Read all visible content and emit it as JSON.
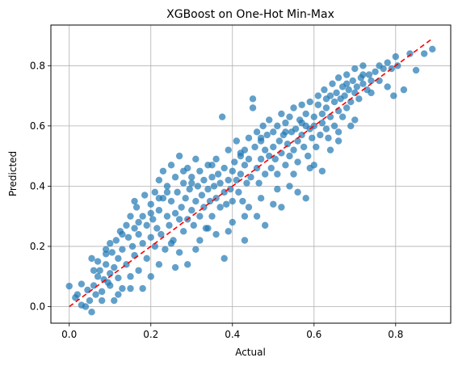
{
  "chart_data": {
    "type": "scatter",
    "title": "XGBoost on One-Hot Min-Max",
    "xlabel": "Actual",
    "ylabel": "Predicted",
    "xlim": [
      -0.045,
      0.935
    ],
    "ylim": [
      -0.055,
      0.935
    ],
    "xticks": [
      0.0,
      0.2,
      0.4,
      0.6,
      0.8
    ],
    "yticks": [
      0.0,
      0.2,
      0.4,
      0.6,
      0.8
    ],
    "xtick_labels": [
      "0.0",
      "0.2",
      "0.4",
      "0.6",
      "0.8"
    ],
    "ytick_labels": [
      "0.0",
      "0.2",
      "0.4",
      "0.6",
      "0.8"
    ],
    "grid": true,
    "point_color": "#1f77b4",
    "reference_line": {
      "style": "dashed",
      "color": "#ff0000",
      "from": [
        0.0,
        0.0
      ],
      "to": [
        0.89,
        0.89
      ]
    },
    "points": [
      [
        0.0,
        0.068
      ],
      [
        0.015,
        0.03
      ],
      [
        0.02,
        0.04
      ],
      [
        0.03,
        0.075
      ],
      [
        0.03,
        0.005
      ],
      [
        0.04,
        0.0
      ],
      [
        0.045,
        0.055
      ],
      [
        0.05,
        0.02
      ],
      [
        0.055,
        0.16
      ],
      [
        0.055,
        -0.018
      ],
      [
        0.06,
        0.07
      ],
      [
        0.065,
        0.04
      ],
      [
        0.07,
        0.1
      ],
      [
        0.075,
        0.12
      ],
      [
        0.08,
        0.05
      ],
      [
        0.085,
        0.09
      ],
      [
        0.09,
        0.14
      ],
      [
        0.09,
        0.175
      ],
      [
        0.095,
        0.08
      ],
      [
        0.1,
        0.11
      ],
      [
        0.1,
        0.21
      ],
      [
        0.105,
        0.18
      ],
      [
        0.11,
        0.13
      ],
      [
        0.11,
        0.02
      ],
      [
        0.115,
        0.22
      ],
      [
        0.12,
        0.16
      ],
      [
        0.12,
        0.095
      ],
      [
        0.125,
        0.25
      ],
      [
        0.13,
        0.19
      ],
      [
        0.13,
        0.06
      ],
      [
        0.14,
        0.27
      ],
      [
        0.14,
        0.14
      ],
      [
        0.145,
        0.23
      ],
      [
        0.15,
        0.3
      ],
      [
        0.15,
        0.1
      ],
      [
        0.155,
        0.2
      ],
      [
        0.16,
        0.26
      ],
      [
        0.16,
        0.17
      ],
      [
        0.165,
        0.33
      ],
      [
        0.17,
        0.24
      ],
      [
        0.17,
        0.12
      ],
      [
        0.18,
        0.3
      ],
      [
        0.18,
        0.21
      ],
      [
        0.185,
        0.37
      ],
      [
        0.19,
        0.27
      ],
      [
        0.19,
        0.16
      ],
      [
        0.2,
        0.34
      ],
      [
        0.2,
        0.23
      ],
      [
        0.205,
        0.29
      ],
      [
        0.21,
        0.38
      ],
      [
        0.21,
        0.2
      ],
      [
        0.215,
        0.26
      ],
      [
        0.22,
        0.42
      ],
      [
        0.22,
        0.32
      ],
      [
        0.225,
        0.24
      ],
      [
        0.23,
        0.45
      ],
      [
        0.23,
        0.36
      ],
      [
        0.235,
        0.19
      ],
      [
        0.24,
        0.3
      ],
      [
        0.24,
        0.4
      ],
      [
        0.245,
        0.27
      ],
      [
        0.25,
        0.47
      ],
      [
        0.25,
        0.35
      ],
      [
        0.255,
        0.22
      ],
      [
        0.26,
        0.31
      ],
      [
        0.26,
        0.43
      ],
      [
        0.265,
        0.38
      ],
      [
        0.27,
        0.29
      ],
      [
        0.27,
        0.5
      ],
      [
        0.275,
        0.33
      ],
      [
        0.28,
        0.41
      ],
      [
        0.28,
        0.25
      ],
      [
        0.285,
        0.36
      ],
      [
        0.29,
        0.46
      ],
      [
        0.29,
        0.29
      ],
      [
        0.295,
        0.39
      ],
      [
        0.3,
        0.32
      ],
      [
        0.3,
        0.43
      ],
      [
        0.305,
        0.27
      ],
      [
        0.31,
        0.35
      ],
      [
        0.31,
        0.49
      ],
      [
        0.315,
        0.4
      ],
      [
        0.32,
        0.3
      ],
      [
        0.32,
        0.45
      ],
      [
        0.325,
        0.37
      ],
      [
        0.33,
        0.42
      ],
      [
        0.33,
        0.33
      ],
      [
        0.335,
        0.26
      ],
      [
        0.34,
        0.39
      ],
      [
        0.34,
        0.47
      ],
      [
        0.345,
        0.35
      ],
      [
        0.35,
        0.43
      ],
      [
        0.35,
        0.3
      ],
      [
        0.355,
        0.4
      ],
      [
        0.36,
        0.36
      ],
      [
        0.36,
        0.49
      ],
      [
        0.365,
        0.44
      ],
      [
        0.37,
        0.33
      ],
      [
        0.37,
        0.41
      ],
      [
        0.375,
        0.63
      ],
      [
        0.38,
        0.38
      ],
      [
        0.38,
        0.46
      ],
      [
        0.385,
        0.34
      ],
      [
        0.39,
        0.42
      ],
      [
        0.39,
        0.52
      ],
      [
        0.395,
        0.39
      ],
      [
        0.4,
        0.45
      ],
      [
        0.4,
        0.35
      ],
      [
        0.405,
        0.48
      ],
      [
        0.41,
        0.42
      ],
      [
        0.41,
        0.55
      ],
      [
        0.415,
        0.38
      ],
      [
        0.42,
        0.5
      ],
      [
        0.42,
        0.44
      ],
      [
        0.425,
        0.35
      ],
      [
        0.43,
        0.52
      ],
      [
        0.43,
        0.47
      ],
      [
        0.435,
        0.41
      ],
      [
        0.44,
        0.56
      ],
      [
        0.44,
        0.49
      ],
      [
        0.445,
        0.43
      ],
      [
        0.45,
        0.66
      ],
      [
        0.45,
        0.69
      ],
      [
        0.455,
        0.53
      ],
      [
        0.46,
        0.46
      ],
      [
        0.46,
        0.58
      ],
      [
        0.465,
        0.41
      ],
      [
        0.47,
        0.55
      ],
      [
        0.47,
        0.49
      ],
      [
        0.475,
        0.6
      ],
      [
        0.48,
        0.52
      ],
      [
        0.48,
        0.44
      ],
      [
        0.485,
        0.57
      ],
      [
        0.49,
        0.5
      ],
      [
        0.49,
        0.62
      ],
      [
        0.495,
        0.46
      ],
      [
        0.5,
        0.58
      ],
      [
        0.5,
        0.53
      ],
      [
        0.505,
        0.49
      ],
      [
        0.51,
        0.6
      ],
      [
        0.51,
        0.44
      ],
      [
        0.515,
        0.55
      ],
      [
        0.52,
        0.64
      ],
      [
        0.52,
        0.51
      ],
      [
        0.525,
        0.57
      ],
      [
        0.53,
        0.47
      ],
      [
        0.53,
        0.61
      ],
      [
        0.535,
        0.54
      ],
      [
        0.54,
        0.5
      ],
      [
        0.54,
        0.63
      ],
      [
        0.545,
        0.58
      ],
      [
        0.55,
        0.52
      ],
      [
        0.55,
        0.66
      ],
      [
        0.555,
        0.59
      ],
      [
        0.56,
        0.55
      ],
      [
        0.56,
        0.48
      ],
      [
        0.565,
        0.62
      ],
      [
        0.57,
        0.57
      ],
      [
        0.57,
        0.67
      ],
      [
        0.575,
        0.53
      ],
      [
        0.58,
        0.6
      ],
      [
        0.58,
        0.64
      ],
      [
        0.585,
        0.5
      ],
      [
        0.59,
        0.59
      ],
      [
        0.59,
        0.68
      ],
      [
        0.595,
        0.56
      ],
      [
        0.6,
        0.63
      ],
      [
        0.6,
        0.6
      ],
      [
        0.605,
        0.53
      ],
      [
        0.61,
        0.67
      ],
      [
        0.61,
        0.7
      ],
      [
        0.615,
        0.57
      ],
      [
        0.62,
        0.64
      ],
      [
        0.62,
        0.61
      ],
      [
        0.625,
        0.72
      ],
      [
        0.63,
        0.59
      ],
      [
        0.63,
        0.66
      ],
      [
        0.635,
        0.56
      ],
      [
        0.64,
        0.7
      ],
      [
        0.64,
        0.63
      ],
      [
        0.645,
        0.74
      ],
      [
        0.65,
        0.68
      ],
      [
        0.65,
        0.6
      ],
      [
        0.655,
        0.71
      ],
      [
        0.66,
        0.65
      ],
      [
        0.66,
        0.76
      ],
      [
        0.665,
        0.69
      ],
      [
        0.67,
        0.63
      ],
      [
        0.67,
        0.73
      ],
      [
        0.675,
        0.7
      ],
      [
        0.68,
        0.66
      ],
      [
        0.68,
        0.77
      ],
      [
        0.685,
        0.72
      ],
      [
        0.69,
        0.68
      ],
      [
        0.69,
        0.6
      ],
      [
        0.695,
        0.75
      ],
      [
        0.7,
        0.71
      ],
      [
        0.7,
        0.79
      ],
      [
        0.705,
        0.73
      ],
      [
        0.71,
        0.69
      ],
      [
        0.715,
        0.76
      ],
      [
        0.72,
        0.74
      ],
      [
        0.72,
        0.8
      ],
      [
        0.73,
        0.72
      ],
      [
        0.735,
        0.77
      ],
      [
        0.74,
        0.75
      ],
      [
        0.75,
        0.78
      ],
      [
        0.76,
        0.8
      ],
      [
        0.77,
        0.79
      ],
      [
        0.78,
        0.81
      ],
      [
        0.79,
        0.79
      ],
      [
        0.795,
        0.7
      ],
      [
        0.8,
        0.83
      ],
      [
        0.805,
        0.8
      ],
      [
        0.82,
        0.72
      ],
      [
        0.835,
        0.84
      ],
      [
        0.85,
        0.785
      ],
      [
        0.87,
        0.84
      ],
      [
        0.89,
        0.855
      ],
      [
        0.12,
        0.04
      ],
      [
        0.18,
        0.06
      ],
      [
        0.26,
        0.13
      ],
      [
        0.31,
        0.19
      ],
      [
        0.38,
        0.16
      ],
      [
        0.43,
        0.22
      ],
      [
        0.48,
        0.27
      ],
      [
        0.52,
        0.33
      ],
      [
        0.56,
        0.38
      ],
      [
        0.58,
        0.36
      ],
      [
        0.62,
        0.45
      ],
      [
        0.46,
        0.3
      ],
      [
        0.36,
        0.24
      ],
      [
        0.25,
        0.21
      ],
      [
        0.4,
        0.28
      ],
      [
        0.5,
        0.34
      ],
      [
        0.6,
        0.47
      ],
      [
        0.66,
        0.55
      ],
      [
        0.7,
        0.62
      ],
      [
        0.54,
        0.4
      ],
      [
        0.44,
        0.33
      ],
      [
        0.34,
        0.26
      ],
      [
        0.29,
        0.14
      ],
      [
        0.2,
        0.1
      ],
      [
        0.15,
        0.06
      ],
      [
        0.1,
        0.07
      ],
      [
        0.08,
        0.02
      ],
      [
        0.22,
        0.14
      ],
      [
        0.27,
        0.18
      ],
      [
        0.32,
        0.22
      ],
      [
        0.28,
        0.45
      ],
      [
        0.24,
        0.38
      ],
      [
        0.2,
        0.31
      ],
      [
        0.17,
        0.28
      ],
      [
        0.13,
        0.24
      ],
      [
        0.09,
        0.19
      ],
      [
        0.07,
        0.15
      ],
      [
        0.06,
        0.12
      ],
      [
        0.16,
        0.35
      ],
      [
        0.22,
        0.36
      ],
      [
        0.3,
        0.41
      ],
      [
        0.35,
        0.47
      ],
      [
        0.42,
        0.51
      ],
      [
        0.47,
        0.56
      ],
      [
        0.53,
        0.58
      ],
      [
        0.57,
        0.61
      ],
      [
        0.63,
        0.69
      ],
      [
        0.68,
        0.74
      ],
      [
        0.72,
        0.77
      ],
      [
        0.74,
        0.71
      ],
      [
        0.76,
        0.75
      ],
      [
        0.78,
        0.73
      ],
      [
        0.66,
        0.58
      ],
      [
        0.64,
        0.52
      ],
      [
        0.59,
        0.46
      ],
      [
        0.55,
        0.44
      ],
      [
        0.51,
        0.39
      ],
      [
        0.47,
        0.36
      ],
      [
        0.43,
        0.3
      ],
      [
        0.39,
        0.25
      ]
    ]
  }
}
